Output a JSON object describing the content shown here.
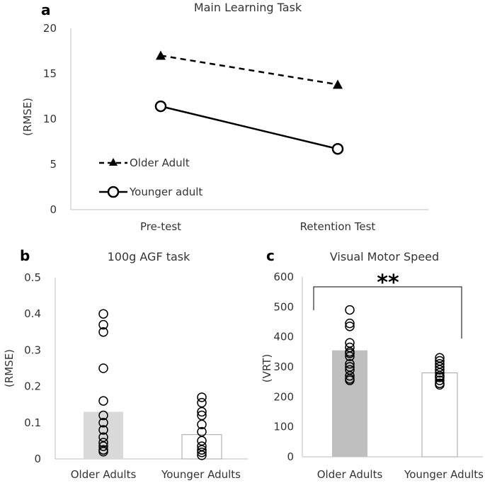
{
  "chart_data": [
    {
      "panel": "a",
      "type": "line",
      "title": "Main Learning Task",
      "ylabel": "(RMSE)",
      "xlabel": "",
      "categories": [
        "Pre-test",
        "Retention Test"
      ],
      "ylim": [
        0,
        20
      ],
      "yticks": [
        "0",
        "5",
        "10",
        "15",
        "20"
      ],
      "series": [
        {
          "name": "Older Adult",
          "values": [
            17.0,
            13.8
          ],
          "marker": "triangle",
          "line": "dashed"
        },
        {
          "name": "Younger adult",
          "values": [
            11.4,
            6.7
          ],
          "marker": "circle",
          "line": "solid"
        }
      ],
      "legend": "bottom-left"
    },
    {
      "panel": "b",
      "type": "bar",
      "title": "100g AGF task",
      "ylabel": "(RMSE)",
      "categories": [
        "Older Adults",
        "Younger Adults"
      ],
      "values": [
        0.13,
        0.067
      ],
      "ylim": [
        0,
        0.5
      ],
      "yticks": [
        "0",
        "0.1",
        "0.2",
        "0.3",
        "0.4",
        "0.5"
      ],
      "points": [
        [
          0.4,
          0.37,
          0.35,
          0.25,
          0.16,
          0.12,
          0.1,
          0.08,
          0.06,
          0.045,
          0.035,
          0.025,
          0.02
        ],
        [
          0.17,
          0.155,
          0.13,
          0.12,
          0.095,
          0.075,
          0.05,
          0.035,
          0.025,
          0.018,
          0.01
        ]
      ],
      "bar_colors": [
        "#d9d9d9",
        "#ffffff"
      ]
    },
    {
      "panel": "c",
      "type": "bar",
      "title": "Visual Motor Speed",
      "ylabel": "(VRT)",
      "categories": [
        "Older Adults",
        "Younger Adults"
      ],
      "values": [
        355,
        280
      ],
      "ylim": [
        0,
        600
      ],
      "yticks": [
        "0",
        "100",
        "200",
        "300",
        "400",
        "500",
        "600"
      ],
      "points": [
        [
          490,
          445,
          435,
          380,
          365,
          350,
          345,
          335,
          310,
          300,
          290,
          270,
          260,
          255
        ],
        [
          330,
          320,
          310,
          300,
          290,
          280,
          270,
          265,
          255,
          245,
          240
        ]
      ],
      "bar_colors": [
        "#bfbfbf",
        "#ffffff"
      ],
      "significance": "**"
    }
  ]
}
